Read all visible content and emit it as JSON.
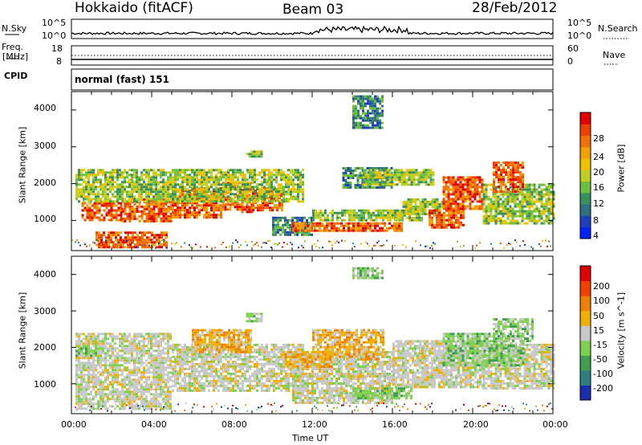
{
  "header": {
    "station": "Hokkaido (fitACF)",
    "beam": "Beam 03",
    "date": "28/Feb/2012"
  },
  "top_panels": {
    "nsky_label": "N.Sky",
    "nsky_ticks": [
      "10^5",
      "10^0"
    ],
    "nsearch_label": "N.Search",
    "nsearch_ticks": [
      "10^5",
      "10^0"
    ],
    "freq_label": "Freq.",
    "freq_unit": "[MHz]",
    "freq_ticks": [
      "18",
      "8"
    ],
    "nave_label": "Nave",
    "nave_ticks": [
      "60",
      "0"
    ],
    "cpid_label": "CPID",
    "cpid_text": "normal (fast) 151"
  },
  "chart_data": [
    {
      "type": "heatmap",
      "name": "power",
      "ylabel": "Slant Range [km]",
      "y_ticks": [
        "4000",
        "3000",
        "2000",
        "1000"
      ],
      "ylim": [
        180,
        4500
      ],
      "xlim_hours": [
        0,
        24
      ],
      "colorbar": {
        "label": "Power [dB]",
        "ticks": [
          "28",
          "24",
          "20",
          "16",
          "12",
          "8",
          "4"
        ],
        "colors": [
          "#0020ff",
          "#1f3fbf",
          "#2f6f7f",
          "#3a8f5f",
          "#6fbf3f",
          "#bfd020",
          "#f0c000",
          "#f0a000",
          "#f07000",
          "#f04000",
          "#e00000"
        ]
      },
      "bands": [
        {
          "t": [
            0.5,
            2.5
          ],
          "r": [
            1000,
            1500
          ],
          "level": "high"
        },
        {
          "t": [
            2.5,
            5.0
          ],
          "r": [
            1000,
            1600
          ],
          "level": "high"
        },
        {
          "t": [
            5.0,
            7.5
          ],
          "r": [
            1050,
            1900
          ],
          "level": "high"
        },
        {
          "t": [
            7.5,
            9.0
          ],
          "r": [
            1200,
            2050
          ],
          "level": "high"
        },
        {
          "t": [
            9.0,
            10.5
          ],
          "r": [
            1300,
            1900
          ],
          "level": "high"
        },
        {
          "t": [
            1.2,
            4.8
          ],
          "r": [
            300,
            700
          ],
          "level": "high"
        },
        {
          "t": [
            0.2,
            11.5
          ],
          "r": [
            1500,
            2400
          ],
          "level": "mid"
        },
        {
          "t": [
            8.7,
            9.5
          ],
          "r": [
            2750,
            2900
          ],
          "level": "mid"
        },
        {
          "t": [
            10.0,
            12.0
          ],
          "r": [
            600,
            1100
          ],
          "level": "low"
        },
        {
          "t": [
            11.0,
            16.5
          ],
          "r": [
            700,
            950
          ],
          "level": "high"
        },
        {
          "t": [
            12.0,
            17.5
          ],
          "r": [
            1000,
            1300
          ],
          "level": "mid"
        },
        {
          "t": [
            13.5,
            16.0
          ],
          "r": [
            1900,
            2450
          ],
          "level": "low"
        },
        {
          "t": [
            14.0,
            15.5
          ],
          "r": [
            3500,
            4400
          ],
          "level": "low"
        },
        {
          "t": [
            14.5,
            18.0
          ],
          "r": [
            2000,
            2400
          ],
          "level": "mid"
        },
        {
          "t": [
            16.5,
            18.5
          ],
          "r": [
            1200,
            1600
          ],
          "level": "mid"
        },
        {
          "t": [
            17.8,
            19.5
          ],
          "r": [
            800,
            1300
          ],
          "level": "high"
        },
        {
          "t": [
            18.5,
            20.5
          ],
          "r": [
            1300,
            2200
          ],
          "level": "high"
        },
        {
          "t": [
            20.5,
            24.0
          ],
          "r": [
            900,
            2000
          ],
          "level": "mid"
        },
        {
          "t": [
            21.0,
            22.5
          ],
          "r": [
            1800,
            2600
          ],
          "level": "high"
        }
      ]
    },
    {
      "type": "heatmap",
      "name": "velocity",
      "ylabel": "Slant Range [km]",
      "y_ticks": [
        "4000",
        "3000",
        "2000",
        "1000"
      ],
      "ylim": [
        180,
        4500
      ],
      "xlim_hours": [
        0,
        24
      ],
      "x_ticks": [
        "00:00",
        "04:00",
        "08:00",
        "12:00",
        "16:00",
        "20:00",
        "00:00"
      ],
      "xlabel": "Time UT",
      "colorbar": {
        "label": "Velocity [m s^-1]",
        "ticks": [
          "200",
          "100",
          "50",
          "15",
          "-15",
          "-50",
          "-100",
          "-200"
        ],
        "colors": [
          "#1a2fb0",
          "#2f7f7f",
          "#3f9f4f",
          "#7fd04f",
          "#c8c8c8",
          "#f0b000",
          "#f08000",
          "#f04000",
          "#e00000"
        ]
      },
      "bands": [
        {
          "t": [
            0.2,
            5.0
          ],
          "r": [
            300,
            2400
          ],
          "level": "gray"
        },
        {
          "t": [
            5.0,
            11.5
          ],
          "r": [
            800,
            2100
          ],
          "level": "gray"
        },
        {
          "t": [
            11.0,
            16.0
          ],
          "r": [
            500,
            1900
          ],
          "level": "gray"
        },
        {
          "t": [
            16.0,
            20.5
          ],
          "r": [
            900,
            2200
          ],
          "level": "gray"
        },
        {
          "t": [
            20.5,
            24.0
          ],
          "r": [
            900,
            2100
          ],
          "level": "gray"
        },
        {
          "t": [
            6.0,
            9.0
          ],
          "r": [
            1900,
            2500
          ],
          "level": "orange"
        },
        {
          "t": [
            10.5,
            13.0
          ],
          "r": [
            1500,
            1900
          ],
          "level": "orange"
        },
        {
          "t": [
            12.0,
            15.5
          ],
          "r": [
            1700,
            2500
          ],
          "level": "orange"
        },
        {
          "t": [
            14.0,
            17.0
          ],
          "r": [
            600,
            900
          ],
          "level": "green"
        },
        {
          "t": [
            18.5,
            22.5
          ],
          "r": [
            1500,
            2400
          ],
          "level": "green"
        },
        {
          "t": [
            21.0,
            23.0
          ],
          "r": [
            2200,
            2800
          ],
          "level": "green"
        },
        {
          "t": [
            8.7,
            9.5
          ],
          "r": [
            2750,
            2950
          ],
          "level": "green"
        },
        {
          "t": [
            14.0,
            15.5
          ],
          "r": [
            3900,
            4200
          ],
          "level": "green"
        },
        {
          "t": [
            0.2,
            1.5
          ],
          "r": [
            1800,
            2000
          ],
          "level": "green"
        }
      ]
    }
  ]
}
